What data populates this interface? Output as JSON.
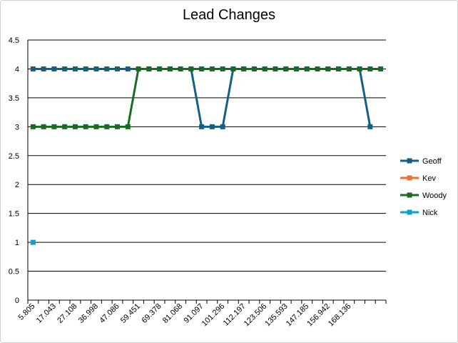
{
  "chart_data": {
    "type": "line",
    "title": "Lead Changes",
    "xlabel": "",
    "ylabel": "",
    "ylim": [
      0,
      4.5
    ],
    "yticks": [
      "0",
      "0.5",
      "1",
      "1.5",
      "2",
      "2.5",
      "3",
      "3.5",
      "4",
      "4.5"
    ],
    "grid": true,
    "legend_position": "right",
    "x_tick_labels": [
      "5.805",
      "17.043",
      "27.108",
      "36.998",
      "47.086",
      "59.451",
      "69.378",
      "81.068",
      "91.097",
      "101.296",
      "112.197",
      "123.506",
      "135.593",
      "147.185",
      "156.942",
      "168.136"
    ],
    "num_points": 34,
    "series": [
      {
        "name": "Geoff",
        "color": "#156082",
        "values": [
          4,
          4,
          4,
          4,
          4,
          4,
          4,
          4,
          4,
          4,
          4,
          4,
          4,
          4,
          4,
          4,
          3,
          3,
          3,
          4,
          4,
          4,
          4,
          4,
          4,
          4,
          4,
          4,
          4,
          4,
          4,
          4,
          3,
          null
        ]
      },
      {
        "name": "Kev",
        "color": "#E97132",
        "values": [
          null,
          null,
          null,
          null,
          null,
          null,
          null,
          null,
          null,
          null,
          null,
          null,
          null,
          null,
          null,
          null,
          null,
          null,
          null,
          null,
          null,
          null,
          null,
          null,
          null,
          null,
          null,
          null,
          null,
          null,
          null,
          null,
          null,
          null
        ]
      },
      {
        "name": "Woody",
        "color": "#196B24",
        "values": [
          3,
          3,
          3,
          3,
          3,
          3,
          3,
          3,
          3,
          3,
          4,
          4,
          4,
          4,
          4,
          4,
          4,
          4,
          4,
          4,
          4,
          4,
          4,
          4,
          4,
          4,
          4,
          4,
          4,
          4,
          4,
          4,
          4,
          4
        ]
      },
      {
        "name": "Nick",
        "color": "#0F9ED5",
        "values": [
          1,
          null,
          null,
          null,
          null,
          null,
          null,
          null,
          null,
          null,
          null,
          null,
          null,
          null,
          null,
          null,
          null,
          null,
          null,
          null,
          null,
          null,
          null,
          null,
          null,
          null,
          null,
          null,
          null,
          null,
          null,
          null,
          null,
          null
        ]
      }
    ]
  }
}
